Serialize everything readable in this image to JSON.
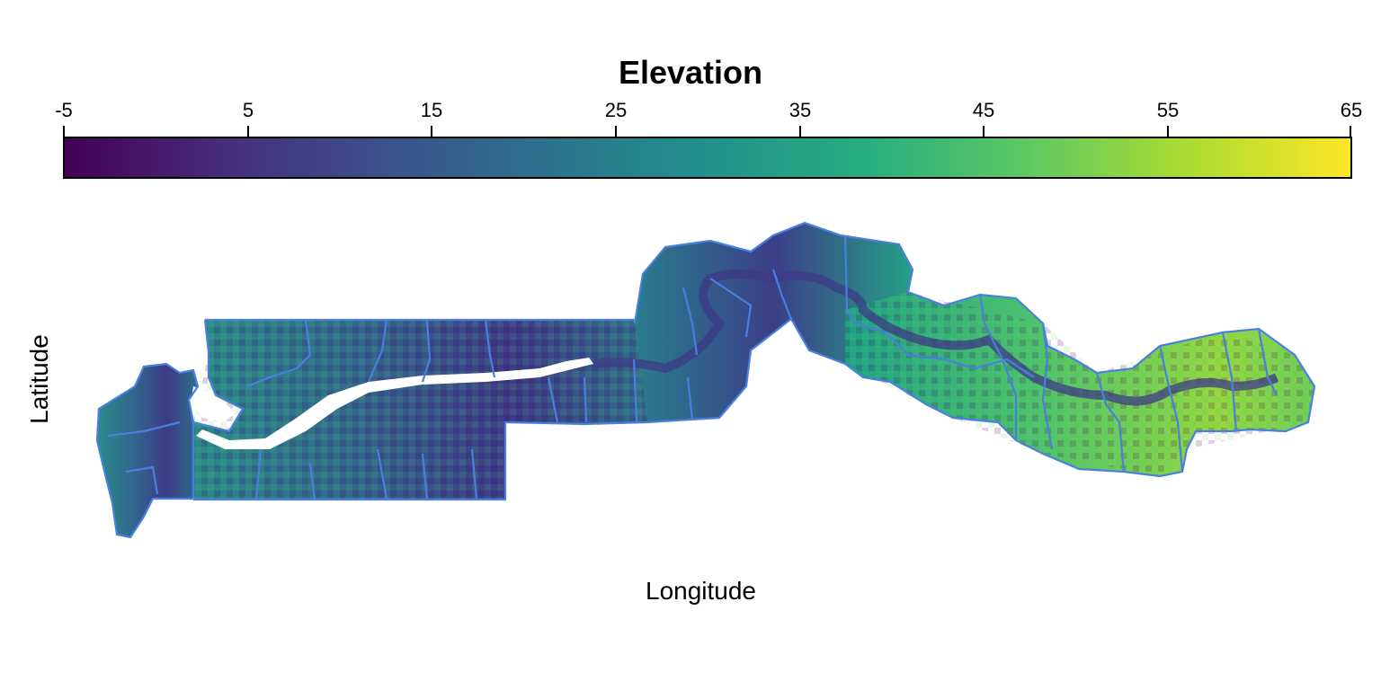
{
  "legend": {
    "title": "Elevation",
    "ticks": [
      "-5",
      "5",
      "15",
      "25",
      "35",
      "45",
      "55",
      "65"
    ],
    "range": [
      -5,
      65
    ],
    "palette": "viridis",
    "colors": [
      "#440154",
      "#472d7b",
      "#3b528b",
      "#2c728e",
      "#21918c",
      "#28ae80",
      "#5ec962",
      "#addc30",
      "#fde725"
    ]
  },
  "axes": {
    "xlabel": "Longitude",
    "ylabel": "Latitude"
  },
  "map": {
    "type": "raster",
    "subject": "elevation raster with district boundaries",
    "boundary_color": "#4a7fe0",
    "water_color": "#ffffff"
  }
}
